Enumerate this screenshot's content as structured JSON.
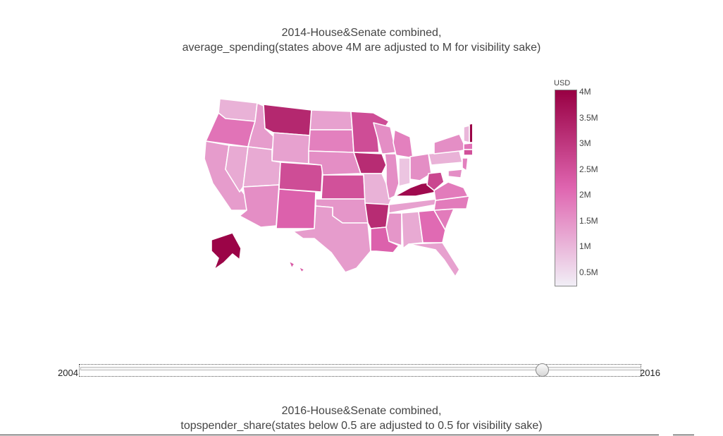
{
  "map_top": {
    "title_line1": "2014-House&Senate combined,",
    "title_line2": "average_spending(states above 4M are adjusted to M for visibility sake)",
    "colorbar": {
      "title": "USD",
      "ticks": [
        "4M",
        "3.5M",
        "3M",
        "2.5M",
        "2M",
        "1.5M",
        "1M",
        "0.5M"
      ],
      "color_high": "#980043",
      "color_mid": "#df65b0",
      "color_low": "#f1eef6"
    },
    "state_levels": {
      "WA": 0.22,
      "OR": 0.45,
      "CA": 0.3,
      "NV": 0.25,
      "ID": 0.3,
      "MT": 0.8,
      "WY": 0.28,
      "UT": 0.25,
      "AZ": 0.35,
      "CO": 0.62,
      "NM": 0.52,
      "ND": 0.28,
      "SD": 0.4,
      "NE": 0.35,
      "KS": 0.6,
      "OK": 0.32,
      "TX": 0.3,
      "MN": 0.62,
      "IA": 0.78,
      "MO": 0.22,
      "AR": 0.78,
      "LA": 0.52,
      "WI": 0.35,
      "IL": 0.35,
      "MI": 0.4,
      "IN": 0.15,
      "OH": 0.35,
      "KY": 0.95,
      "TN": 0.28,
      "MS": 0.32,
      "AL": 0.25,
      "GA": 0.48,
      "FL": 0.28,
      "SC": 0.42,
      "NC": 0.42,
      "VA": 0.42,
      "WV": 0.65,
      "PA": 0.22,
      "NY": 0.35,
      "ME": 0.4,
      "NH": 0.98,
      "VT": 0.2,
      "MA": 0.45,
      "CT": 0.6,
      "NJ": 0.4,
      "MD": 0.35,
      "AK": 0.98,
      "HI": 0.55
    }
  },
  "slider": {
    "min_label": "2004",
    "max_label": "2016",
    "current_fraction": 0.825
  },
  "map_bottom": {
    "title_line1": "2016-House&Senate combined,",
    "title_line2": "topspender_share(states below 0.5 are adjusted to 0.5 for visibility sake)"
  }
}
